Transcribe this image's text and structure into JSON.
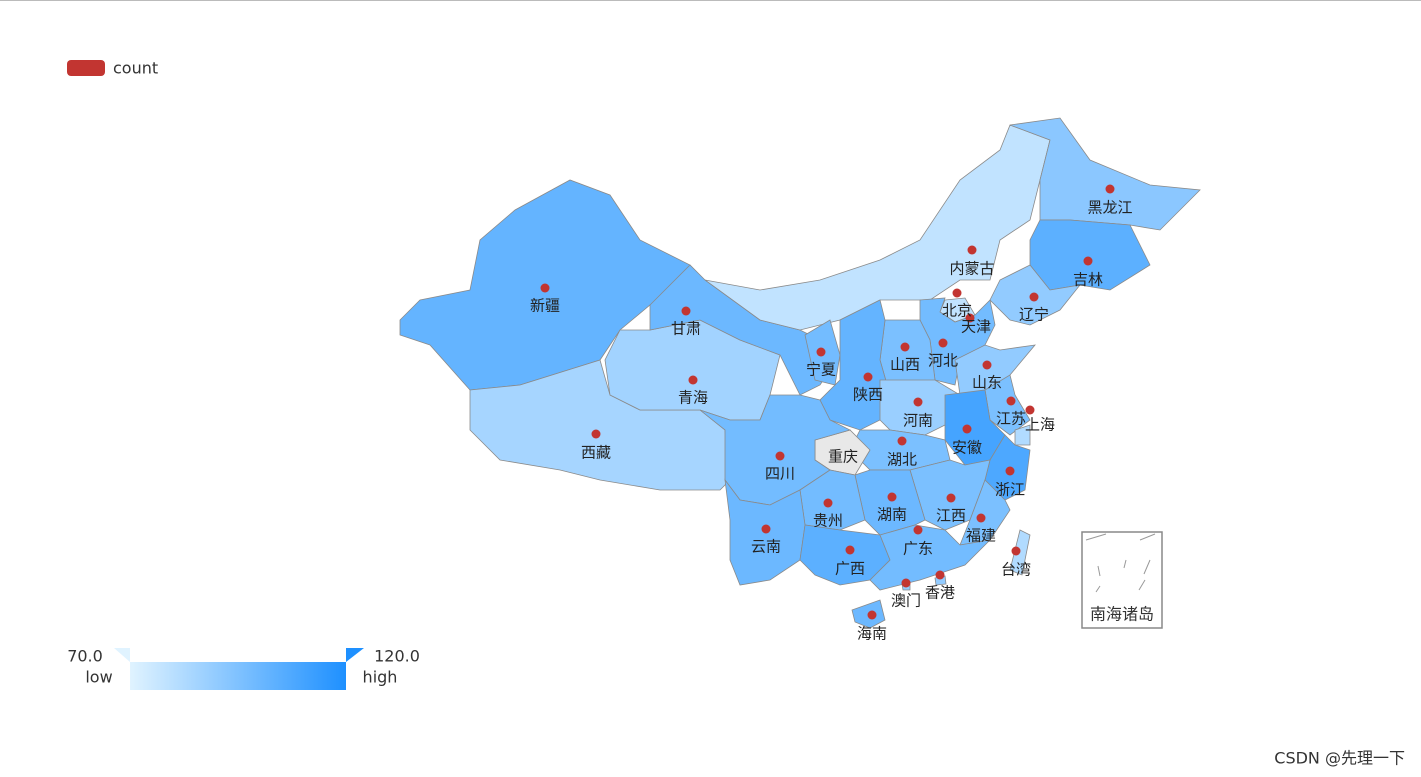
{
  "chart_data": {
    "type": "map",
    "categories": [
      "新疆",
      "西藏",
      "青海",
      "甘肃",
      "内蒙古",
      "黑龙江",
      "吉林",
      "辽宁",
      "北京",
      "天津",
      "河北",
      "山西",
      "宁夏",
      "陕西",
      "山东",
      "河南",
      "江苏",
      "上海",
      "安徽",
      "湖北",
      "重庆",
      "四川",
      "浙江",
      "江西",
      "湖南",
      "贵州",
      "福建",
      "云南",
      "广西",
      "广东",
      "台湾",
      "香港",
      "澳门",
      "海南"
    ],
    "series": [
      {
        "name": "count",
        "color": "#c23531",
        "values": [
          102,
          85,
          86,
          100,
          78,
          92,
          104,
          90,
          78,
          82,
          98,
          96,
          98,
          102,
          90,
          88,
          96,
          82,
          110,
          96,
          null,
          98,
          108,
          96,
          100,
          98,
          96,
          100,
          104,
          98,
          82,
          90,
          90,
          100
        ]
      }
    ],
    "visual_map": {
      "min": {
        "value": 70,
        "label": "70.0"
      },
      "max": {
        "value": 120,
        "label": "120.0"
      },
      "low_text": "low",
      "high_text": "high",
      "colors": [
        "#e0f3ff",
        "#1e90ff"
      ]
    },
    "null_color": "#e8e8e8",
    "inset_label": "南海诸岛"
  },
  "watermark": "CSDN @先理一下"
}
